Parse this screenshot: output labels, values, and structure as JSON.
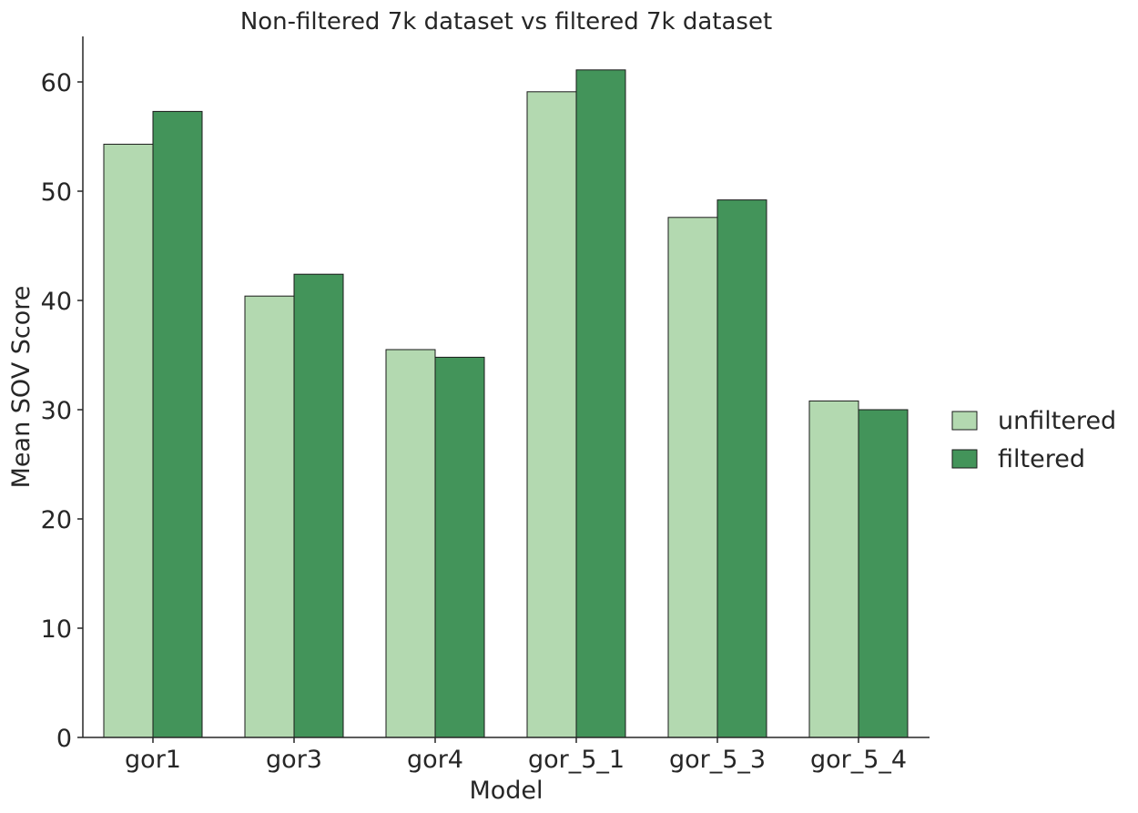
{
  "chart_data": {
    "type": "bar",
    "title": "Non-filtered 7k dataset vs filtered 7k dataset",
    "xlabel": "Model",
    "ylabel": "Mean SOV Score",
    "categories": [
      "gor1",
      "gor3",
      "gor4",
      "gor_5_1",
      "gor_5_3",
      "gor_5_4"
    ],
    "series": [
      {
        "name": "unfiltered",
        "color": "#b3d9b0",
        "values": [
          54.3,
          40.4,
          35.5,
          59.1,
          47.6,
          30.8
        ]
      },
      {
        "name": "filtered",
        "color": "#43945a",
        "values": [
          57.3,
          42.4,
          34.8,
          61.1,
          49.2,
          30.0
        ]
      }
    ],
    "ylim": [
      0,
      64
    ],
    "yticks": [
      0,
      10,
      20,
      30,
      40,
      50,
      60
    ],
    "grid": false,
    "legend_position": "right"
  }
}
